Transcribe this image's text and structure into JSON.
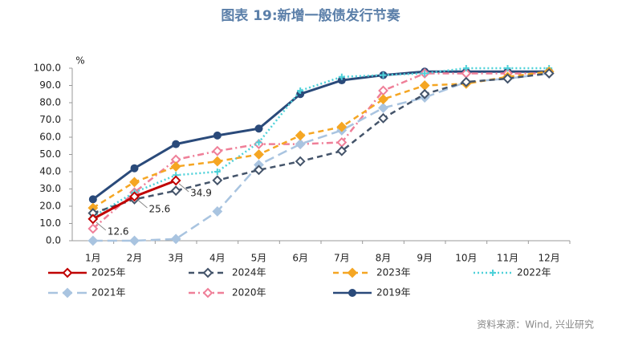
{
  "chart_data": {
    "type": "line",
    "title": "图表 19:新增一般债发行节奏",
    "y_unit": "%",
    "source": "资料来源：Wind, 兴业研究",
    "categories": [
      "1月",
      "2月",
      "3月",
      "4月",
      "5月",
      "6月",
      "7月",
      "8月",
      "9月",
      "10月",
      "11月",
      "12月"
    ],
    "ylim": [
      0,
      100
    ],
    "yticks": [
      {
        "value": 0,
        "label": "0.0"
      },
      {
        "value": 10,
        "label": "10.0"
      },
      {
        "value": 20,
        "label": "20.0"
      },
      {
        "value": 30,
        "label": "30.0"
      },
      {
        "value": 40,
        "label": "40.0"
      },
      {
        "value": 50,
        "label": "50.0"
      },
      {
        "value": 60,
        "label": "60.0"
      },
      {
        "value": 70,
        "label": "70.0"
      },
      {
        "value": 80,
        "label": "80.0"
      },
      {
        "value": 90,
        "label": "90.0"
      },
      {
        "value": 100,
        "label": "100.0"
      }
    ],
    "grid": false,
    "series": [
      {
        "name": "2025年",
        "color": "#c00000",
        "dash": "solid",
        "marker": "diamond-open",
        "values": [
          12.6,
          25.6,
          34.9,
          null,
          null,
          null,
          null,
          null,
          null,
          null,
          null,
          null
        ],
        "value_labels": [
          "12.6",
          "25.6",
          "34.9",
          null,
          null,
          null,
          null,
          null,
          null,
          null,
          null,
          null
        ]
      },
      {
        "name": "2024年",
        "color": "#44546a",
        "dash": "dash",
        "marker": "diamond-open",
        "values": [
          16,
          24,
          29,
          35,
          41,
          46,
          52,
          71,
          85,
          92,
          94,
          97
        ]
      },
      {
        "name": "2023年",
        "color": "#f5a623",
        "dash": "dash",
        "marker": "diamond",
        "values": [
          19,
          34,
          43,
          46,
          50,
          61,
          66,
          82,
          90,
          91,
          95,
          98
        ]
      },
      {
        "name": "2022年",
        "color": "#4fd1d9",
        "dash": "dot",
        "marker": "cross",
        "values": [
          14,
          28,
          38,
          40,
          57,
          87,
          95,
          96,
          97,
          100,
          100,
          100
        ]
      },
      {
        "name": "2021年",
        "color": "#a9c4e0",
        "dash": "longdash",
        "marker": "diamond",
        "values": [
          0,
          0,
          1,
          17,
          44,
          56,
          64,
          77,
          83,
          92,
          94,
          97
        ]
      },
      {
        "name": "2020年",
        "color": "#ef7f98",
        "dash": "dashdot",
        "marker": "diamond-open",
        "values": [
          7,
          28,
          47,
          52,
          56,
          56,
          57,
          87,
          97,
          97,
          97,
          97
        ]
      },
      {
        "name": "2019年",
        "color": "#2a4a7a",
        "dash": "solid",
        "marker": "circle",
        "values": [
          24,
          42,
          56,
          61,
          65,
          85,
          93,
          96,
          98,
          98,
          98,
          98
        ]
      }
    ]
  }
}
